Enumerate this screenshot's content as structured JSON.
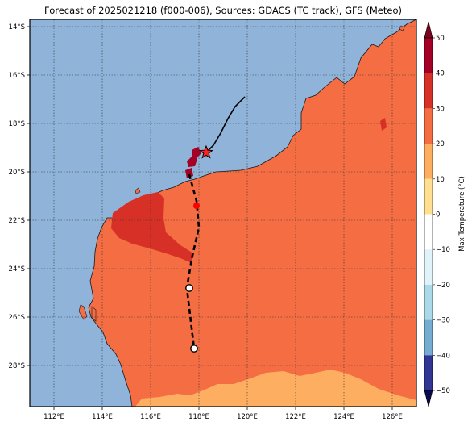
{
  "title": "Forecast of 2025021218 (f000-006), Sources: GDACS (TC track), GFS (Meteo)",
  "map": {
    "lon_range": [
      111,
      127
    ],
    "lat_range": [
      -29.7,
      -13.7
    ],
    "x_ticks": [
      "112°E",
      "114°E",
      "116°E",
      "118°E",
      "120°E",
      "122°E",
      "124°E",
      "126°E"
    ],
    "x_tick_values": [
      112,
      114,
      116,
      118,
      120,
      122,
      124,
      126
    ],
    "y_ticks": [
      "14°S",
      "16°S",
      "18°S",
      "20°S",
      "22°S",
      "24°S",
      "26°S",
      "28°S"
    ],
    "y_tick_values": [
      -14,
      -16,
      -18,
      -20,
      -22,
      -24,
      -26,
      -28
    ],
    "ocean_color": "#8fb3d9",
    "gridlines": true
  },
  "colorbar": {
    "label": "Max Temperature (°C)",
    "ticks": [
      "50",
      "40",
      "30",
      "20",
      "10",
      "0",
      "−10",
      "−20",
      "−30",
      "−40",
      "−50"
    ],
    "tick_values": [
      50,
      40,
      30,
      20,
      10,
      0,
      -10,
      -20,
      -30,
      -40,
      -50
    ],
    "range": [
      -50,
      50
    ],
    "bands": [
      {
        "from": 40,
        "to": 50,
        "color": "#a50026"
      },
      {
        "from": 30,
        "to": 40,
        "color": "#d73027"
      },
      {
        "from": 20,
        "to": 30,
        "color": "#f46d43"
      },
      {
        "from": 10,
        "to": 20,
        "color": "#fdae61"
      },
      {
        "from": 0,
        "to": 10,
        "color": "#fee090"
      },
      {
        "from": -10,
        "to": 0,
        "color": "#ffffff"
      },
      {
        "from": -20,
        "to": -10,
        "color": "#e0f3f8"
      },
      {
        "from": -30,
        "to": -20,
        "color": "#abd9e9"
      },
      {
        "from": -40,
        "to": -30,
        "color": "#74add1"
      },
      {
        "from": -50,
        "to": -40,
        "color": "#313695"
      }
    ],
    "extend_max_color": "#800020",
    "extend_min_color": "#0a0a50"
  },
  "track": {
    "past_color": "#000000",
    "forecast_color": "#000000",
    "past": [
      [
        119.9,
        -16.9
      ],
      [
        119.5,
        -17.3
      ],
      [
        119.2,
        -17.8
      ],
      [
        118.9,
        -18.4
      ],
      [
        118.6,
        -18.9
      ],
      [
        118.3,
        -19.2
      ]
    ],
    "forecast": [
      [
        117.6,
        -20.1
      ],
      [
        117.9,
        -21.2
      ],
      [
        118.0,
        -22.3
      ],
      [
        117.7,
        -23.6
      ],
      [
        117.5,
        -24.8
      ],
      [
        117.8,
        -27.3
      ]
    ],
    "current_position": [
      118.3,
      -19.2
    ],
    "markers": [
      {
        "lon": 117.9,
        "lat": -21.4,
        "kind": "red-dot"
      },
      {
        "lon": 117.6,
        "lat": -24.8,
        "kind": "open-circle"
      },
      {
        "lon": 117.8,
        "lat": -27.3,
        "kind": "open-circle"
      }
    ]
  }
}
